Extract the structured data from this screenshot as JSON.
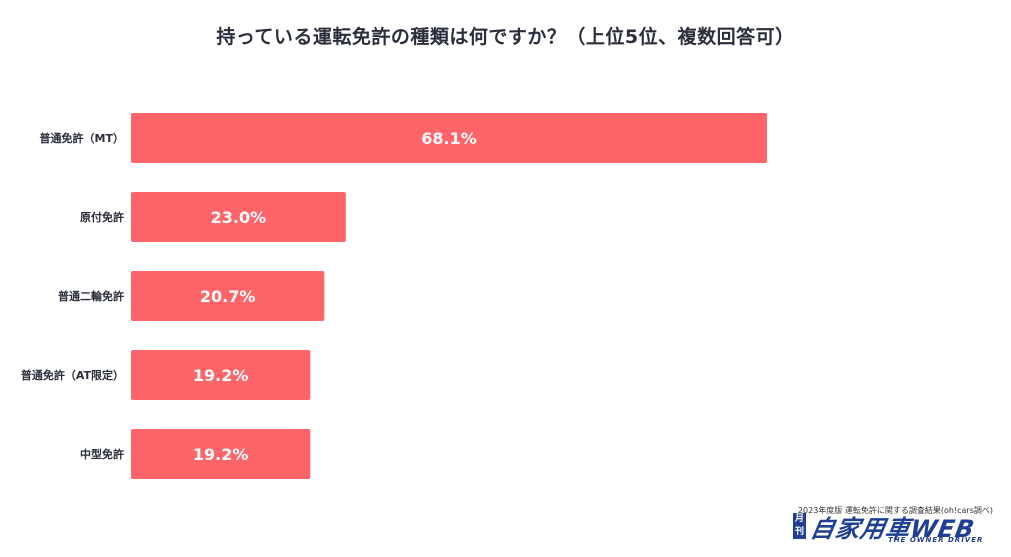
{
  "chart_data": {
    "type": "bar",
    "orientation": "horizontal",
    "title": "持っている運転免許の種類は何ですか？（上位5位、複数回答可）",
    "categories": [
      "普通免許（MT）",
      "原付免許",
      "普通二輪免許",
      "普通免許（AT限定）",
      "中型免許"
    ],
    "values": [
      68.1,
      23.0,
      20.7,
      19.2,
      19.2
    ],
    "value_labels": [
      "68.1%",
      "23.0%",
      "20.7%",
      "19.2%",
      "19.2%"
    ],
    "unit": "%",
    "xlim": [
      0,
      100
    ],
    "grid": false,
    "bar_color": "#ff6469"
  },
  "footer": {
    "source": "2023年度版 運転免許に関する調査結果(oh!cars調べ)",
    "logo_badge": "月刊",
    "logo_main": "自家用車WEB",
    "logo_sub": "THE OWNER DRIVER"
  }
}
